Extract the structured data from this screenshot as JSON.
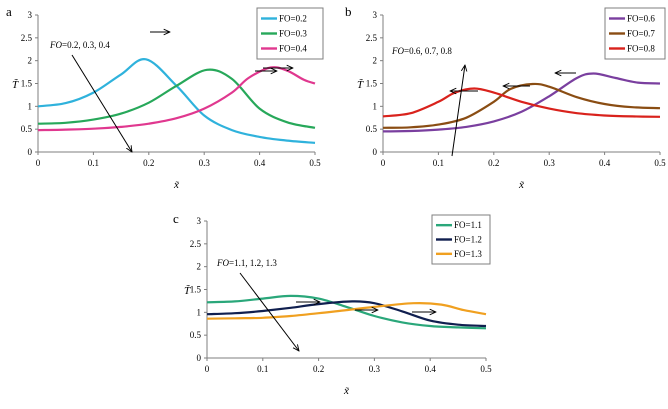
{
  "chart_data": [
    {
      "panel": "a",
      "type": "line",
      "xlabel": "x̃",
      "ylabel": "T̃",
      "xlim": [
        0,
        0.5
      ],
      "ylim": [
        0,
        3
      ],
      "xticks": [
        "0",
        "0.1",
        "0.2",
        "0.3",
        "0.4",
        "0.5"
      ],
      "yticks": [
        "0",
        "0.5",
        "1",
        "1.5",
        "2",
        "2.5",
        "3"
      ],
      "annotation": {
        "var": "FO",
        "values": "=0.2, 0.3, 0.4"
      },
      "legend_position": "top-right",
      "series": [
        {
          "name": "FO=0.2",
          "color": "#2fb2dc",
          "x": [
            0,
            0.05,
            0.1,
            0.15,
            0.195,
            0.25,
            0.3,
            0.35,
            0.4,
            0.45,
            0.5
          ],
          "y": [
            1.0,
            1.07,
            1.3,
            1.7,
            2.03,
            1.45,
            0.8,
            0.48,
            0.33,
            0.25,
            0.2
          ]
        },
        {
          "name": "FO=0.3",
          "color": "#27a85a",
          "x": [
            0,
            0.05,
            0.1,
            0.15,
            0.2,
            0.25,
            0.305,
            0.35,
            0.4,
            0.45,
            0.5
          ],
          "y": [
            0.62,
            0.64,
            0.71,
            0.84,
            1.08,
            1.45,
            1.8,
            1.6,
            0.95,
            0.65,
            0.53
          ]
        },
        {
          "name": "FO=0.4",
          "color": "#e0388f",
          "x": [
            0,
            0.05,
            0.1,
            0.15,
            0.2,
            0.25,
            0.3,
            0.35,
            0.38,
            0.42,
            0.45,
            0.48,
            0.5
          ],
          "y": [
            0.48,
            0.49,
            0.51,
            0.55,
            0.62,
            0.74,
            0.95,
            1.3,
            1.62,
            1.85,
            1.78,
            1.58,
            1.5
          ]
        }
      ]
    },
    {
      "panel": "b",
      "type": "line",
      "xlabel": "x̃",
      "ylabel": "T̃",
      "xlim": [
        0,
        0.5
      ],
      "ylim": [
        0,
        3
      ],
      "xticks": [
        "0",
        "0.1",
        "0.2",
        "0.3",
        "0.4",
        "0.5"
      ],
      "yticks": [
        "0",
        "0.5",
        "1",
        "1.5",
        "2",
        "2.5",
        "3"
      ],
      "annotation": {
        "var": "FO",
        "values": "=0.6, 0.7, 0.8"
      },
      "legend_position": "top-right",
      "series": [
        {
          "name": "FO=0.6",
          "color": "#7a3f9f",
          "x": [
            0,
            0.05,
            0.1,
            0.15,
            0.2,
            0.25,
            0.3,
            0.35,
            0.38,
            0.42,
            0.46,
            0.5
          ],
          "y": [
            0.45,
            0.46,
            0.49,
            0.55,
            0.67,
            0.88,
            1.22,
            1.62,
            1.72,
            1.62,
            1.52,
            1.5
          ]
        },
        {
          "name": "FO=0.7",
          "color": "#8a4d13",
          "x": [
            0,
            0.05,
            0.1,
            0.15,
            0.2,
            0.23,
            0.27,
            0.3,
            0.35,
            0.4,
            0.45,
            0.5
          ],
          "y": [
            0.53,
            0.54,
            0.6,
            0.75,
            1.1,
            1.38,
            1.49,
            1.43,
            1.2,
            1.05,
            0.98,
            0.96
          ]
        },
        {
          "name": "FO=0.8",
          "color": "#d9221c",
          "x": [
            0,
            0.05,
            0.1,
            0.13,
            0.165,
            0.2,
            0.25,
            0.3,
            0.35,
            0.4,
            0.45,
            0.5
          ],
          "y": [
            0.78,
            0.85,
            1.1,
            1.3,
            1.39,
            1.3,
            1.1,
            0.95,
            0.85,
            0.8,
            0.78,
            0.77
          ]
        }
      ]
    },
    {
      "panel": "c",
      "type": "line",
      "xlabel": "x̃",
      "ylabel": "T̃",
      "xlim": [
        0,
        0.5
      ],
      "ylim": [
        0,
        3
      ],
      "xticks": [
        "0",
        "0.1",
        "0.2",
        "0.3",
        "0.4",
        "0.5"
      ],
      "yticks": [
        "0",
        "0.5",
        "1",
        "1.5",
        "2",
        "2.5",
        "3"
      ],
      "annotation": {
        "var": "FO",
        "values": "=1.1, 1.2, 1.3"
      },
      "legend_position": "top-right",
      "series": [
        {
          "name": "FO=1.1",
          "color": "#2aa77a",
          "x": [
            0,
            0.05,
            0.1,
            0.15,
            0.2,
            0.25,
            0.3,
            0.35,
            0.4,
            0.45,
            0.5
          ],
          "y": [
            1.22,
            1.24,
            1.3,
            1.36,
            1.3,
            1.12,
            0.92,
            0.78,
            0.7,
            0.67,
            0.65
          ]
        },
        {
          "name": "FO=1.2",
          "color": "#101f4f",
          "x": [
            0,
            0.05,
            0.1,
            0.15,
            0.2,
            0.26,
            0.3,
            0.35,
            0.4,
            0.45,
            0.5
          ],
          "y": [
            0.96,
            0.98,
            1.03,
            1.1,
            1.18,
            1.24,
            1.2,
            1.02,
            0.82,
            0.73,
            0.7
          ]
        },
        {
          "name": "FO=1.3",
          "color": "#f0a020",
          "x": [
            0,
            0.05,
            0.1,
            0.15,
            0.2,
            0.25,
            0.3,
            0.37,
            0.42,
            0.46,
            0.5
          ],
          "y": [
            0.86,
            0.87,
            0.88,
            0.92,
            0.98,
            1.05,
            1.12,
            1.2,
            1.17,
            1.05,
            0.96
          ]
        }
      ]
    }
  ]
}
